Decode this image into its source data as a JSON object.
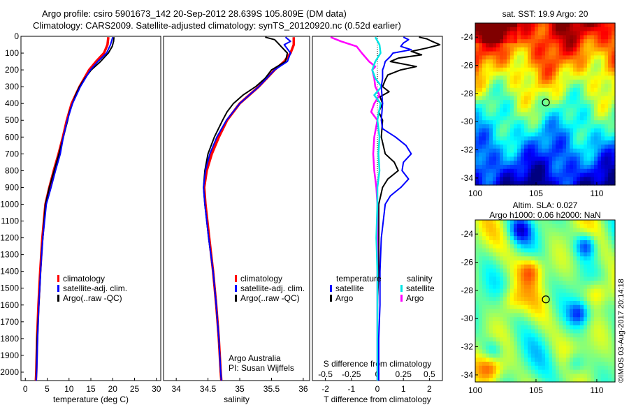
{
  "title": {
    "line1": "Argo profile: csiro 5901673_142 20-Sep-2012 28.639S 105.809E (DM data)",
    "line2": "Climatology: CARS2009. Satellite-adjusted climatology: synTS_20120920.nc (0.52d earlier)"
  },
  "depth_ticks": [
    "0",
    "100",
    "200",
    "300",
    "400",
    "500",
    "600",
    "700",
    "800",
    "900",
    "1000",
    "1100",
    "1200",
    "1300",
    "1400",
    "1500",
    "1600",
    "1700",
    "1800",
    "1900",
    "2000"
  ],
  "colors": {
    "climatology": "#ff0000",
    "satellite": "#0000ff",
    "argo": "#000000",
    "sat_salinity": "#00e5e5",
    "argo_salinity": "#ff00ff"
  },
  "chart_data": [
    {
      "type": "line",
      "name": "temperature",
      "xlabel": "temperature (deg C)",
      "xlim": [
        -1,
        31
      ],
      "ylim": [
        2050,
        0
      ],
      "xticks": [
        "0",
        "5",
        "10",
        "15",
        "20",
        "25",
        "30"
      ],
      "legend": [
        "climatology",
        "satellite-adj. clim.",
        "Argo(..raw -QC)"
      ],
      "series": [
        {
          "name": "climatology",
          "depth": [
            5,
            50,
            100,
            150,
            200,
            300,
            400,
            500,
            600,
            700,
            800,
            900,
            1000,
            1200,
            1400,
            1600,
            1800,
            2000,
            2050
          ],
          "values": [
            19.0,
            18.8,
            18.0,
            16.2,
            14.6,
            12.4,
            10.6,
            9.5,
            8.6,
            7.6,
            6.5,
            5.5,
            4.6,
            3.9,
            3.4,
            3.0,
            2.7,
            2.5,
            2.4
          ]
        },
        {
          "name": "satellite-adj. clim.",
          "depth": [
            5,
            50,
            100,
            150,
            200,
            300,
            400,
            500,
            600,
            700,
            800,
            900,
            1000,
            1200,
            1400,
            1600,
            1800,
            2000,
            2050
          ],
          "values": [
            20.0,
            19.5,
            18.6,
            16.6,
            14.9,
            12.6,
            10.8,
            9.6,
            8.7,
            8.0,
            6.9,
            5.9,
            4.8,
            4.0,
            3.5,
            3.1,
            2.8,
            2.6,
            2.5
          ]
        },
        {
          "name": "Argo",
          "depth": [
            5,
            30,
            60,
            100,
            150,
            200,
            250,
            300,
            350,
            400,
            450,
            500,
            600,
            700,
            800,
            900,
            1000,
            1100,
            1200,
            1300,
            1400,
            1500,
            1600,
            1700,
            1800,
            1900,
            2000,
            2050
          ],
          "values": [
            20.3,
            20.2,
            19.9,
            19.0,
            17.2,
            15.1,
            13.6,
            12.4,
            11.5,
            10.8,
            10.1,
            9.7,
            8.7,
            7.7,
            6.6,
            5.5,
            4.6,
            4.3,
            4.0,
            3.7,
            3.5,
            3.3,
            3.1,
            2.9,
            2.7,
            2.6,
            2.5,
            2.5
          ]
        }
      ]
    },
    {
      "type": "line",
      "name": "salinity",
      "xlabel": "salinity",
      "xlim": [
        33.8,
        36.1
      ],
      "ylim": [
        2050,
        0
      ],
      "xticks": [
        "34",
        "34.5",
        "35",
        "35.5",
        "36"
      ],
      "legend": [
        "climatology",
        "satellite-adj. clim.",
        "Argo(..raw -QC)"
      ],
      "annotation": [
        "Argo Australia",
        "PI: Susan Wijffels"
      ],
      "series": [
        {
          "name": "climatology",
          "depth": [
            5,
            50,
            100,
            150,
            200,
            300,
            400,
            500,
            600,
            700,
            800,
            900,
            1000,
            1200,
            1400,
            1600,
            1800,
            2000,
            2050
          ],
          "values": [
            35.85,
            35.85,
            35.8,
            35.7,
            35.55,
            35.3,
            35.0,
            34.8,
            34.67,
            34.56,
            34.48,
            34.44,
            34.46,
            34.52,
            34.58,
            34.63,
            34.67,
            34.7,
            34.71
          ]
        },
        {
          "name": "satellite-adj. clim.",
          "depth": [
            5,
            30,
            50,
            100,
            150,
            200,
            300,
            400,
            500,
            600,
            700,
            800,
            900,
            1000,
            1200,
            1400,
            1600,
            1800,
            2000,
            2050
          ],
          "values": [
            35.72,
            35.8,
            35.7,
            35.8,
            35.75,
            35.55,
            35.3,
            35.0,
            34.79,
            34.64,
            34.53,
            34.46,
            34.43,
            34.45,
            34.51,
            34.58,
            34.63,
            34.67,
            34.7,
            34.71
          ]
        },
        {
          "name": "Argo",
          "depth": [
            5,
            20,
            40,
            60,
            100,
            150,
            200,
            250,
            300,
            350,
            400,
            450,
            500,
            600,
            700,
            800,
            900,
            1000,
            1200,
            1400,
            1600,
            1800,
            2000,
            2050
          ],
          "values": [
            35.4,
            35.55,
            35.6,
            35.65,
            35.75,
            35.72,
            35.5,
            35.4,
            35.25,
            35.05,
            34.9,
            34.8,
            34.73,
            34.6,
            34.5,
            34.45,
            34.43,
            34.45,
            34.51,
            34.58,
            34.63,
            34.67,
            34.7,
            34.71
          ]
        }
      ]
    },
    {
      "type": "line",
      "name": "differences",
      "xlabel": "T difference from climatology",
      "xlabel_top": "S difference from climatology",
      "xlim": [
        -2.5,
        2.5
      ],
      "ylim": [
        2050,
        0
      ],
      "xticks": [
        "-2",
        "-1",
        "0",
        "1",
        "2"
      ],
      "xticks_top": [
        "-0.5",
        "-0.25",
        "0",
        "0.25",
        "0.5"
      ],
      "legend_headers": [
        "temperature",
        "salinity"
      ],
      "legend": [
        "satellite",
        "Argo",
        "satellite",
        "Argo"
      ],
      "series": [
        {
          "name": "temperature satellite",
          "depth": [
            5,
            20,
            40,
            60,
            80,
            100,
            120,
            150,
            180,
            200,
            250,
            300,
            400,
            500,
            550,
            600,
            650,
            700,
            750,
            800,
            850,
            900,
            950,
            1000,
            1200,
            1400,
            1600,
            1800,
            2000,
            2050
          ],
          "values": [
            1.0,
            1.2,
            1.0,
            0.9,
            1.3,
            0.6,
            0.5,
            0.3,
            0.25,
            0.2,
            0.2,
            0.15,
            0.2,
            0.15,
            0.2,
            0.7,
            1.1,
            1.3,
            1.0,
            0.95,
            1.2,
            0.9,
            0.5,
            0.3,
            0.15,
            0.1,
            0.1,
            0.05,
            0.05,
            0.05
          ]
        },
        {
          "name": "temperature Argo",
          "depth": [
            5,
            15,
            30,
            50,
            70,
            90,
            110,
            130,
            150,
            180,
            200,
            230,
            260,
            300,
            330,
            360,
            400,
            450,
            500,
            600,
            700,
            750,
            800,
            850,
            900,
            1000,
            1200,
            1400,
            1600,
            1800,
            2000,
            2050
          ],
          "values": [
            1.6,
            1.9,
            2.1,
            2.4,
            1.9,
            1.3,
            1.7,
            0.8,
            0.5,
            1.5,
            0.9,
            0.4,
            0.3,
            0.2,
            0.45,
            0.1,
            0.2,
            0.05,
            0.2,
            0.15,
            0.3,
            0.65,
            0.8,
            0.4,
            0.2,
            0.05,
            0.05,
            0.05,
            0.0,
            0.0,
            0.0,
            0.0
          ]
        },
        {
          "name": "salinity satellite",
          "depth": [
            5,
            50,
            100,
            150,
            200,
            250,
            300,
            350,
            400,
            500,
            600,
            700,
            800,
            900,
            1000,
            1200,
            1400,
            1600,
            1800,
            2000,
            2050
          ],
          "values": [
            -0.02,
            0.02,
            0.03,
            -0.02,
            -0.05,
            -0.02,
            0.04,
            -0.03,
            0.03,
            0.0,
            0.02,
            0.01,
            0.02,
            0.0,
            0.0,
            -0.01,
            0.0,
            0.0,
            0.0,
            0.0,
            0.0
          ]
        },
        {
          "name": "salinity Argo",
          "depth": [
            5,
            30,
            60,
            100,
            150,
            180,
            200,
            250,
            300,
            350,
            400,
            450,
            500,
            600,
            700,
            800,
            900,
            1000,
            1200,
            1400,
            1600,
            1800,
            2000,
            2050
          ],
          "values": [
            -0.45,
            -0.35,
            -0.2,
            -0.15,
            -0.08,
            -0.02,
            -0.05,
            -0.03,
            -0.02,
            0.02,
            -0.03,
            -0.06,
            0.0,
            -0.03,
            -0.04,
            -0.03,
            -0.01,
            0.0,
            0.0,
            0.0,
            0.0,
            0.0,
            0.0,
            0.0
          ]
        }
      ]
    },
    {
      "type": "heatmap",
      "name": "sst_map",
      "title": "sat. SST: 19.9 Argo: 20",
      "xlim": [
        100,
        111.5
      ],
      "ylim": [
        -34.5,
        -23
      ],
      "xticks": [
        "100",
        "105",
        "110"
      ],
      "yticks": [
        "-24",
        "-26",
        "-28",
        "-30",
        "-32",
        "-34"
      ],
      "marker": {
        "lon": 105.809,
        "lat": -28.639
      }
    },
    {
      "type": "heatmap",
      "name": "sla_map",
      "title": "Altim. SLA: 0.027",
      "subtitle": "Argo h1000: 0.06 h2000: NaN",
      "xlim": [
        100,
        111.5
      ],
      "ylim": [
        -34.5,
        -23
      ],
      "xticks": [
        "100",
        "105",
        "110"
      ],
      "yticks": [
        "-24",
        "-26",
        "-28",
        "-30",
        "-32",
        "-34"
      ],
      "marker": {
        "lon": 105.809,
        "lat": -28.639
      }
    }
  ],
  "footer": "©IMOS 03-Aug-2017 20:14:18"
}
